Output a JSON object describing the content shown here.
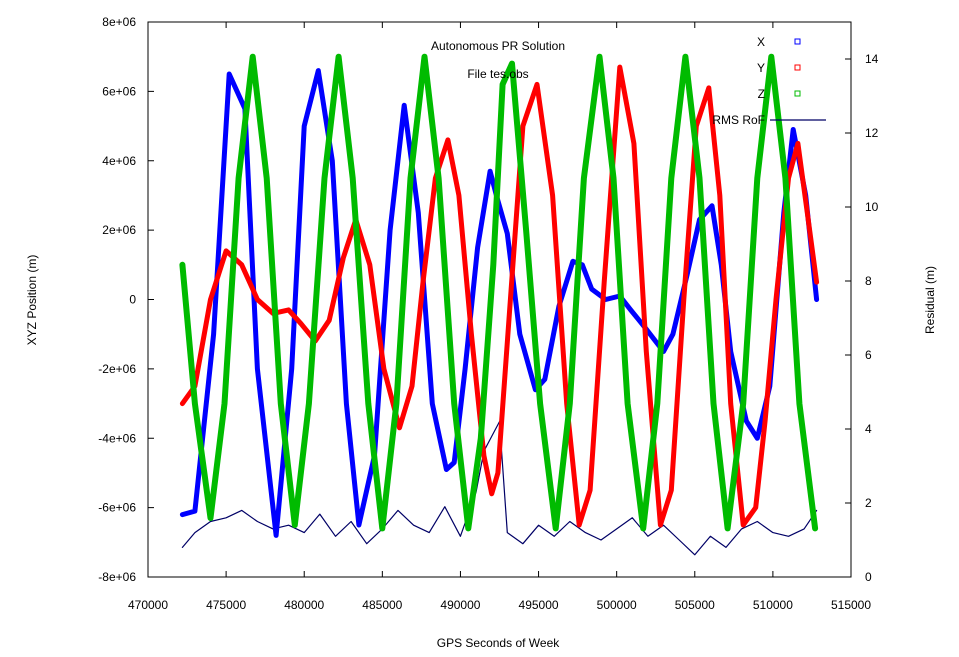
{
  "chart_data": {
    "type": "line",
    "title": "Autonomous PR Solution",
    "subtitle": "File tes.obs",
    "xlabel": "GPS Seconds of Week",
    "ylabel": "XYZ Position (m)",
    "y2label": "Residual (m)",
    "xlim": [
      470000,
      515000
    ],
    "ylim": [
      -8000000,
      8000000
    ],
    "y2lim": [
      0,
      15
    ],
    "x_ticks": [
      "470000",
      "475000",
      "480000",
      "485000",
      "490000",
      "495000",
      "500000",
      "505000",
      "510000",
      "515000"
    ],
    "y_ticks": [
      "-8e+06",
      "-6e+06",
      "-4e+06",
      "-2e+06",
      "0",
      "2e+06",
      "4e+06",
      "6e+06",
      "8e+06"
    ],
    "y2_ticks": [
      "0",
      "2",
      "4",
      "6",
      "8",
      "10",
      "12",
      "14"
    ],
    "legend_position": "top-right",
    "series": [
      {
        "name": "X",
        "axis": "left",
        "color": "#0000ff",
        "x": [
          472200,
          473000,
          474200,
          475200,
          476200,
          477000,
          478200,
          479200,
          480000,
          480900,
          481800,
          482700,
          483500,
          484500,
          485500,
          486400,
          487300,
          488200,
          489100,
          489600,
          490300,
          491100,
          491900,
          492300,
          493000,
          493800,
          494800,
          495400,
          496300,
          497200,
          497800,
          498400,
          499300,
          500200,
          500900,
          501800,
          503000,
          503600,
          504500,
          505300,
          506100,
          506700,
          507300,
          508300,
          509000,
          509800,
          510700,
          511300,
          512100,
          512800
        ],
        "y": [
          -6200000,
          -6100000,
          -1000000,
          6500000,
          5500000,
          -2000000,
          -6800000,
          -2000000,
          5000000,
          6600000,
          4000000,
          -3000000,
          -6500000,
          -4500000,
          2000000,
          5600000,
          2500000,
          -3000000,
          -4900000,
          -4700000,
          -2000000,
          1500000,
          3700000,
          3000000,
          1900000,
          -1000000,
          -2600000,
          -2300000,
          -200000,
          1100000,
          1000000,
          300000,
          0,
          100000,
          -300000,
          -800000,
          -1500000,
          -1000000,
          700000,
          2300000,
          2700000,
          1000000,
          -1500000,
          -3500000,
          -4000000,
          -2500000,
          2500000,
          4900000,
          3000000,
          0
        ]
      },
      {
        "name": "Y",
        "axis": "left",
        "color": "#ff0000",
        "x": [
          472200,
          473000,
          474000,
          475000,
          476000,
          477000,
          478000,
          479000,
          479800,
          480700,
          481600,
          482500,
          483300,
          484200,
          485100,
          486100,
          486900,
          487600,
          488400,
          489200,
          489900,
          490700,
          491500,
          492000,
          492400,
          493200,
          494000,
          494900,
          495900,
          496800,
          497600,
          498300,
          499200,
          500200,
          501100,
          501900,
          502800,
          503500,
          504300,
          505100,
          505900,
          506600,
          507300,
          508100,
          508900,
          509500,
          510200,
          511000,
          511600,
          512200,
          512800
        ],
        "y": [
          -3000000,
          -2500000,
          0,
          1400000,
          1000000,
          0,
          -400000,
          -300000,
          -700000,
          -1200000,
          -600000,
          1200000,
          2300000,
          1000000,
          -2000000,
          -3700000,
          -2500000,
          500000,
          3500000,
          4600000,
          3000000,
          -1000000,
          -4500000,
          -5600000,
          -5000000,
          0,
          5000000,
          6200000,
          3000000,
          -3000000,
          -6500000,
          -5500000,
          500000,
          6700000,
          4500000,
          -1500000,
          -6500000,
          -5500000,
          0,
          5000000,
          6100000,
          3000000,
          -3000000,
          -6500000,
          -6000000,
          -3500000,
          0,
          3500000,
          4500000,
          2500000,
          500000
        ]
      },
      {
        "name": "Z",
        "axis": "left",
        "color": "#00bb00",
        "x": [
          472200,
          473000,
          474000,
          474900,
          475800,
          476700,
          477600,
          478500,
          479400,
          480300,
          481300,
          482200,
          483100,
          484100,
          485000,
          485900,
          486800,
          487700,
          488600,
          489600,
          490500,
          491300,
          492100,
          492700,
          493300,
          494200,
          495100,
          496100,
          497000,
          497900,
          498900,
          499800,
          500700,
          501700,
          502600,
          503500,
          504400,
          505300,
          506200,
          507100,
          508100,
          509000,
          509900,
          510800,
          511700,
          512700
        ],
        "y": [
          1000000,
          -3000000,
          -6300000,
          -3000000,
          3500000,
          7000000,
          3500000,
          -3000000,
          -6500000,
          -3000000,
          3500000,
          7000000,
          3500000,
          -3000000,
          -6600000,
          -3000000,
          3500000,
          7000000,
          3500000,
          -3000000,
          -6600000,
          -4000000,
          1000000,
          6200000,
          6800000,
          2000000,
          -3000000,
          -6600000,
          -3000000,
          3500000,
          7000000,
          3500000,
          -3000000,
          -6600000,
          -3000000,
          3500000,
          7000000,
          3500000,
          -3000000,
          -6600000,
          -3000000,
          3500000,
          7000000,
          3500000,
          -3000000,
          -6600000
        ]
      },
      {
        "name": "RMS RoF",
        "axis": "right",
        "color": "#000066",
        "x": [
          472200,
          473000,
          474000,
          475000,
          476000,
          477000,
          478000,
          479000,
          480000,
          481000,
          482000,
          483000,
          484000,
          485000,
          486000,
          487000,
          488000,
          489000,
          490000,
          491000,
          491500,
          492000,
          492500,
          493000,
          494000,
          495000,
          496000,
          497000,
          498000,
          499000,
          500000,
          501000,
          502000,
          503000,
          504000,
          505000,
          506000,
          507000,
          508000,
          509000,
          510000,
          511000,
          512000,
          512800
        ],
        "y": [
          0.8,
          1.2,
          1.5,
          1.6,
          1.8,
          1.5,
          1.3,
          1.4,
          1.2,
          1.7,
          1.1,
          1.5,
          0.9,
          1.3,
          1.8,
          1.4,
          1.2,
          1.9,
          1.1,
          2.3,
          3.4,
          3.8,
          4.2,
          1.2,
          0.9,
          1.4,
          1.1,
          1.5,
          1.2,
          1.0,
          1.3,
          1.6,
          1.1,
          1.4,
          1.0,
          0.6,
          1.1,
          0.8,
          1.3,
          1.5,
          1.2,
          1.1,
          1.3,
          1.8
        ]
      }
    ]
  }
}
